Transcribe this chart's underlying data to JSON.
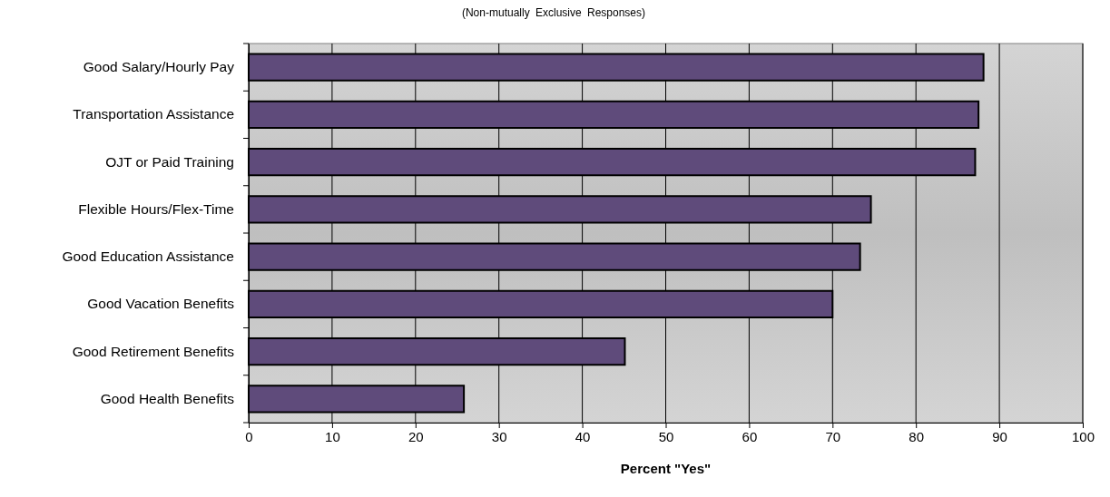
{
  "chart_data": {
    "type": "bar",
    "orientation": "horizontal",
    "title": "(Non-mutually Exclusive Responses)",
    "xlabel": "Percent \"Yes\"",
    "categories": [
      "Good Salary/Hourly Pay",
      "Transportation Assistance",
      "OJT or Paid Training",
      "Flexible Hours/Flex-Time",
      "Good Education Assistance",
      "Good Vacation Benefits",
      "Good Retirement Benefits",
      "Good Health Benefits"
    ],
    "values": [
      88.1,
      87.5,
      87.1,
      74.6,
      73.3,
      70.0,
      45.1,
      25.8
    ],
    "color": "#5f4b7b",
    "xlim": [
      0,
      100
    ],
    "xticks": [
      0,
      10,
      20,
      30,
      40,
      50,
      60,
      70,
      80,
      90,
      100
    ],
    "grid": "x"
  }
}
